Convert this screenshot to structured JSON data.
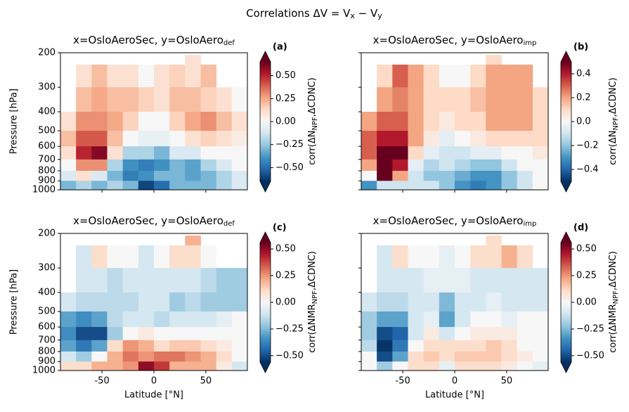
{
  "title": {
    "text": "Correlations ΔV = V",
    "sub1": "x",
    "mid": " − V",
    "sub2": "y"
  },
  "colormap": [
    "#053061",
    "#2166ac",
    "#4393c3",
    "#92c5de",
    "#d1e5f0",
    "#f7f7f7",
    "#fddbc7",
    "#f4a582",
    "#d6604d",
    "#b2182b",
    "#67001f"
  ],
  "chart_data": [
    {
      "type": "heatmap",
      "title": {
        "text": "x=OsloAeroSec, y=OsloAero",
        "sub": "def"
      },
      "panel_label": "(a)",
      "ylabel": "Pressure [hPa]",
      "show_xticklabels": false,
      "show_yticklabels": true,
      "log_y": true,
      "xlim": [
        -90,
        90
      ],
      "xticks": [
        -50,
        0,
        50
      ],
      "ylim": [
        1000,
        200
      ],
      "yticks": [
        200,
        300,
        400,
        500,
        600,
        700,
        800,
        900,
        1000
      ],
      "x_bins": [
        -90,
        -75,
        -60,
        -45,
        -30,
        -15,
        0,
        15,
        30,
        45,
        60,
        75,
        90
      ],
      "y_bins": [
        205,
        230,
        300,
        400,
        500,
        600,
        700,
        800,
        900,
        1000
      ],
      "values": [
        [
          null,
          null,
          null,
          null,
          null,
          null,
          null,
          null,
          0.1,
          null,
          null,
          null
        ],
        [
          null,
          0.1,
          0.2,
          0.1,
          0.1,
          0.0,
          0.1,
          0.15,
          0.1,
          0.2,
          null,
          null
        ],
        [
          null,
          0.2,
          0.25,
          0.2,
          0.2,
          0.15,
          0.1,
          0.2,
          0.2,
          0.15,
          0.1,
          0.0
        ],
        [
          0.1,
          0.3,
          0.3,
          0.25,
          0.15,
          0.0,
          0.0,
          0.15,
          0.25,
          0.3,
          0.2,
          0.1
        ],
        [
          0.2,
          0.4,
          0.4,
          0.2,
          0.0,
          -0.05,
          -0.05,
          0.0,
          0.1,
          0.15,
          0.1,
          0.05
        ],
        [
          0.1,
          0.5,
          0.6,
          0.1,
          -0.2,
          -0.2,
          -0.3,
          -0.1,
          -0.1,
          0.0,
          0.0,
          0.0
        ],
        [
          0.0,
          0.3,
          0.3,
          -0.2,
          -0.4,
          -0.45,
          -0.4,
          -0.3,
          -0.35,
          -0.2,
          -0.1,
          0.0
        ],
        [
          -0.1,
          0.1,
          -0.1,
          -0.3,
          -0.45,
          -0.4,
          -0.3,
          -0.3,
          -0.35,
          -0.3,
          -0.2,
          -0.1
        ],
        [
          -0.3,
          -0.2,
          -0.3,
          -0.2,
          -0.3,
          -0.6,
          -0.5,
          -0.3,
          -0.3,
          -0.3,
          -0.2,
          -0.1
        ]
      ],
      "clim": [
        -0.65,
        0.65
      ],
      "colorbar_ticks": [
        {
          "value": -0.5,
          "label": "−0.50"
        },
        {
          "value": -0.25,
          "label": "−0.25"
        },
        {
          "value": 0,
          "label": "0.00"
        },
        {
          "value": 0.25,
          "label": "0.25"
        },
        {
          "value": 0.5,
          "label": "0.50"
        }
      ],
      "colorbar_label": {
        "text": "corr(ΔN",
        "sub": "NPF",
        "end": ",ΔCDNC)"
      }
    },
    {
      "type": "heatmap",
      "title": {
        "text": "x=OsloAeroSec, y=OsloAero",
        "sub": "imp"
      },
      "panel_label": "(b)",
      "show_xticklabels": false,
      "show_yticklabels": false,
      "log_y": true,
      "xlim": [
        -90,
        90
      ],
      "xticks": [
        -50,
        0,
        50
      ],
      "ylim": [
        1000,
        200
      ],
      "yticks": [
        200,
        300,
        400,
        500,
        600,
        700,
        800,
        900,
        1000
      ],
      "x_bins": [
        -90,
        -75,
        -60,
        -45,
        -30,
        -15,
        0,
        15,
        30,
        45,
        60,
        75,
        90
      ],
      "y_bins": [
        205,
        230,
        300,
        400,
        500,
        600,
        700,
        800,
        900,
        1000
      ],
      "values": [
        [
          null,
          null,
          null,
          null,
          null,
          null,
          null,
          null,
          0.1,
          null,
          null,
          null
        ],
        [
          null,
          0.1,
          0.3,
          0.2,
          0.1,
          0.0,
          0.0,
          0.1,
          0.2,
          0.2,
          0.2,
          null
        ],
        [
          null,
          0.2,
          0.25,
          0.2,
          0.1,
          0.1,
          0.1,
          0.15,
          0.2,
          0.2,
          0.2,
          0.1
        ],
        [
          0.2,
          0.3,
          0.3,
          0.2,
          0.1,
          0.05,
          0.1,
          0.1,
          0.2,
          0.2,
          0.2,
          0.1
        ],
        [
          0.3,
          0.4,
          0.4,
          0.2,
          0.05,
          -0.05,
          0.0,
          0.05,
          0.1,
          0.1,
          0.1,
          0.1
        ],
        [
          0.3,
          0.55,
          0.5,
          0.1,
          -0.05,
          -0.1,
          -0.1,
          -0.05,
          -0.05,
          0.0,
          0.0,
          0.05
        ],
        [
          0.2,
          0.55,
          0.4,
          -0.05,
          -0.15,
          -0.1,
          -0.15,
          -0.2,
          -0.2,
          -0.1,
          0.0,
          0.0
        ],
        [
          0.0,
          0.5,
          0.2,
          -0.1,
          -0.2,
          -0.2,
          -0.25,
          -0.3,
          -0.3,
          -0.2,
          -0.1,
          0.0
        ],
        [
          -0.3,
          -0.1,
          -0.1,
          -0.1,
          -0.1,
          -0.2,
          -0.3,
          -0.35,
          -0.3,
          -0.2,
          -0.1,
          0.0
        ]
      ],
      "clim": [
        -0.5,
        0.5
      ],
      "colorbar_ticks": [
        {
          "value": -0.4,
          "label": "−0.4"
        },
        {
          "value": -0.2,
          "label": "−0.2"
        },
        {
          "value": 0,
          "label": "0.0"
        },
        0.2,
        0.4
      ],
      "colorbar_label": {
        "text": "corr(ΔN",
        "sub": "NPF",
        "end": ",ΔCDNC)"
      }
    },
    {
      "type": "heatmap",
      "title": {
        "text": "x=OsloAeroSec, y=OsloAero",
        "sub": "def"
      },
      "panel_label": "(c)",
      "ylabel": "Pressure [hPa]",
      "xlabel": "Latitude [°N]",
      "show_xticklabels": true,
      "show_yticklabels": true,
      "log_y": true,
      "xlim": [
        -90,
        90
      ],
      "xticks": [
        -50,
        0,
        50
      ],
      "ylim": [
        1000,
        200
      ],
      "yticks": [
        200,
        300,
        400,
        500,
        600,
        700,
        800,
        900,
        1000
      ],
      "x_bins": [
        -90,
        -75,
        -60,
        -45,
        -30,
        -15,
        0,
        15,
        30,
        45,
        60,
        75,
        90
      ],
      "y_bins": [
        205,
        230,
        300,
        400,
        500,
        600,
        700,
        800,
        900,
        1000
      ],
      "values": [
        [
          null,
          null,
          null,
          null,
          null,
          null,
          null,
          null,
          0.2,
          null,
          null,
          null
        ],
        [
          null,
          -0.1,
          0.1,
          0.0,
          0.0,
          -0.1,
          0.0,
          0.1,
          0.1,
          0.0,
          null,
          null
        ],
        [
          null,
          -0.1,
          -0.1,
          -0.15,
          -0.1,
          -0.1,
          -0.1,
          -0.1,
          -0.1,
          -0.15,
          -0.2,
          -0.2
        ],
        [
          -0.1,
          -0.15,
          -0.15,
          -0.15,
          -0.15,
          -0.1,
          -0.1,
          -0.2,
          -0.15,
          -0.2,
          -0.2,
          -0.2
        ],
        [
          -0.3,
          -0.35,
          -0.3,
          -0.15,
          -0.1,
          -0.1,
          -0.15,
          -0.1,
          -0.1,
          -0.1,
          -0.05,
          0.0
        ],
        [
          -0.35,
          -0.5,
          -0.5,
          -0.2,
          0.0,
          0.05,
          0.0,
          0.0,
          0.0,
          0.0,
          0.0,
          0.0
        ],
        [
          -0.3,
          -0.4,
          -0.3,
          0.1,
          0.25,
          0.2,
          0.1,
          0.15,
          0.15,
          0.1,
          0.05,
          0.0
        ],
        [
          -0.1,
          -0.2,
          0.0,
          0.2,
          0.3,
          0.25,
          0.3,
          0.3,
          0.25,
          0.2,
          0.1,
          0.0
        ],
        [
          0.1,
          0.1,
          0.2,
          0.2,
          0.25,
          0.5,
          0.4,
          0.2,
          0.2,
          0.2,
          0.05,
          -0.1
        ]
      ],
      "clim": [
        -0.56,
        0.56
      ],
      "colorbar_ticks": [
        {
          "value": -0.5,
          "label": "−0.50"
        },
        {
          "value": -0.25,
          "label": "−0.25"
        },
        {
          "value": 0,
          "label": "0.00"
        },
        {
          "value": 0.25,
          "label": "0.25"
        },
        {
          "value": 0.5,
          "label": "0.50"
        }
      ],
      "colorbar_label": {
        "text": "corr(ΔNMR",
        "sub": "NPF",
        "end": ",ΔCDNC)"
      }
    },
    {
      "type": "heatmap",
      "title": {
        "text": "x=OsloAeroSec, y=OsloAero",
        "sub": "imp"
      },
      "panel_label": "(d)",
      "xlabel": "Latitude [°N]",
      "show_xticklabels": true,
      "show_yticklabels": false,
      "log_y": true,
      "xlim": [
        -90,
        90
      ],
      "xticks": [
        -50,
        0,
        50
      ],
      "ylim": [
        1000,
        200
      ],
      "yticks": [
        200,
        300,
        400,
        500,
        600,
        700,
        800,
        900,
        1000
      ],
      "x_bins": [
        -90,
        -75,
        -60,
        -45,
        -30,
        -15,
        0,
        15,
        30,
        45,
        60,
        75,
        90
      ],
      "y_bins": [
        205,
        230,
        300,
        400,
        500,
        600,
        700,
        800,
        900,
        1000
      ],
      "values": [
        [
          null,
          null,
          null,
          null,
          null,
          null,
          null,
          null,
          0.1,
          null,
          null,
          null
        ],
        [
          null,
          -0.1,
          0.1,
          0.0,
          0.0,
          -0.05,
          0.0,
          0.1,
          0.1,
          0.2,
          0.1,
          null
        ],
        [
          null,
          -0.1,
          -0.1,
          -0.1,
          -0.05,
          -0.05,
          -0.05,
          -0.1,
          -0.1,
          -0.1,
          -0.1,
          -0.1
        ],
        [
          -0.1,
          -0.15,
          -0.15,
          -0.1,
          -0.1,
          -0.25,
          -0.1,
          -0.1,
          -0.05,
          -0.1,
          -0.1,
          -0.1
        ],
        [
          -0.2,
          -0.3,
          -0.3,
          -0.1,
          -0.05,
          -0.3,
          -0.1,
          0.0,
          0.0,
          -0.05,
          0.0,
          0.0
        ],
        [
          -0.2,
          -0.5,
          -0.45,
          -0.1,
          0.05,
          -0.1,
          0.0,
          0.05,
          0.05,
          0.05,
          0.0,
          0.0
        ],
        [
          -0.15,
          -0.55,
          -0.4,
          0.0,
          0.1,
          0.1,
          0.1,
          0.1,
          0.15,
          0.1,
          0.0,
          0.0
        ],
        [
          0.0,
          -0.5,
          -0.3,
          0.1,
          0.15,
          0.1,
          0.15,
          0.15,
          0.15,
          0.1,
          0.05,
          0.0
        ],
        [
          0.0,
          -0.2,
          0.0,
          0.1,
          0.1,
          -0.05,
          0.1,
          0.1,
          0.1,
          0.05,
          0.0,
          -0.05
        ]
      ],
      "clim": [
        -0.56,
        0.56
      ],
      "colorbar_ticks": [
        {
          "value": -0.5,
          "label": "−0.50"
        },
        {
          "value": -0.25,
          "label": "−0.25"
        },
        {
          "value": 0,
          "label": "0.00"
        },
        {
          "value": 0.25,
          "label": "0.25"
        },
        {
          "value": 0.5,
          "label": "0.50"
        }
      ],
      "colorbar_label": {
        "text": "corr(ΔNMR",
        "sub": "NPF",
        "end": ",ΔCDNC)"
      }
    }
  ]
}
